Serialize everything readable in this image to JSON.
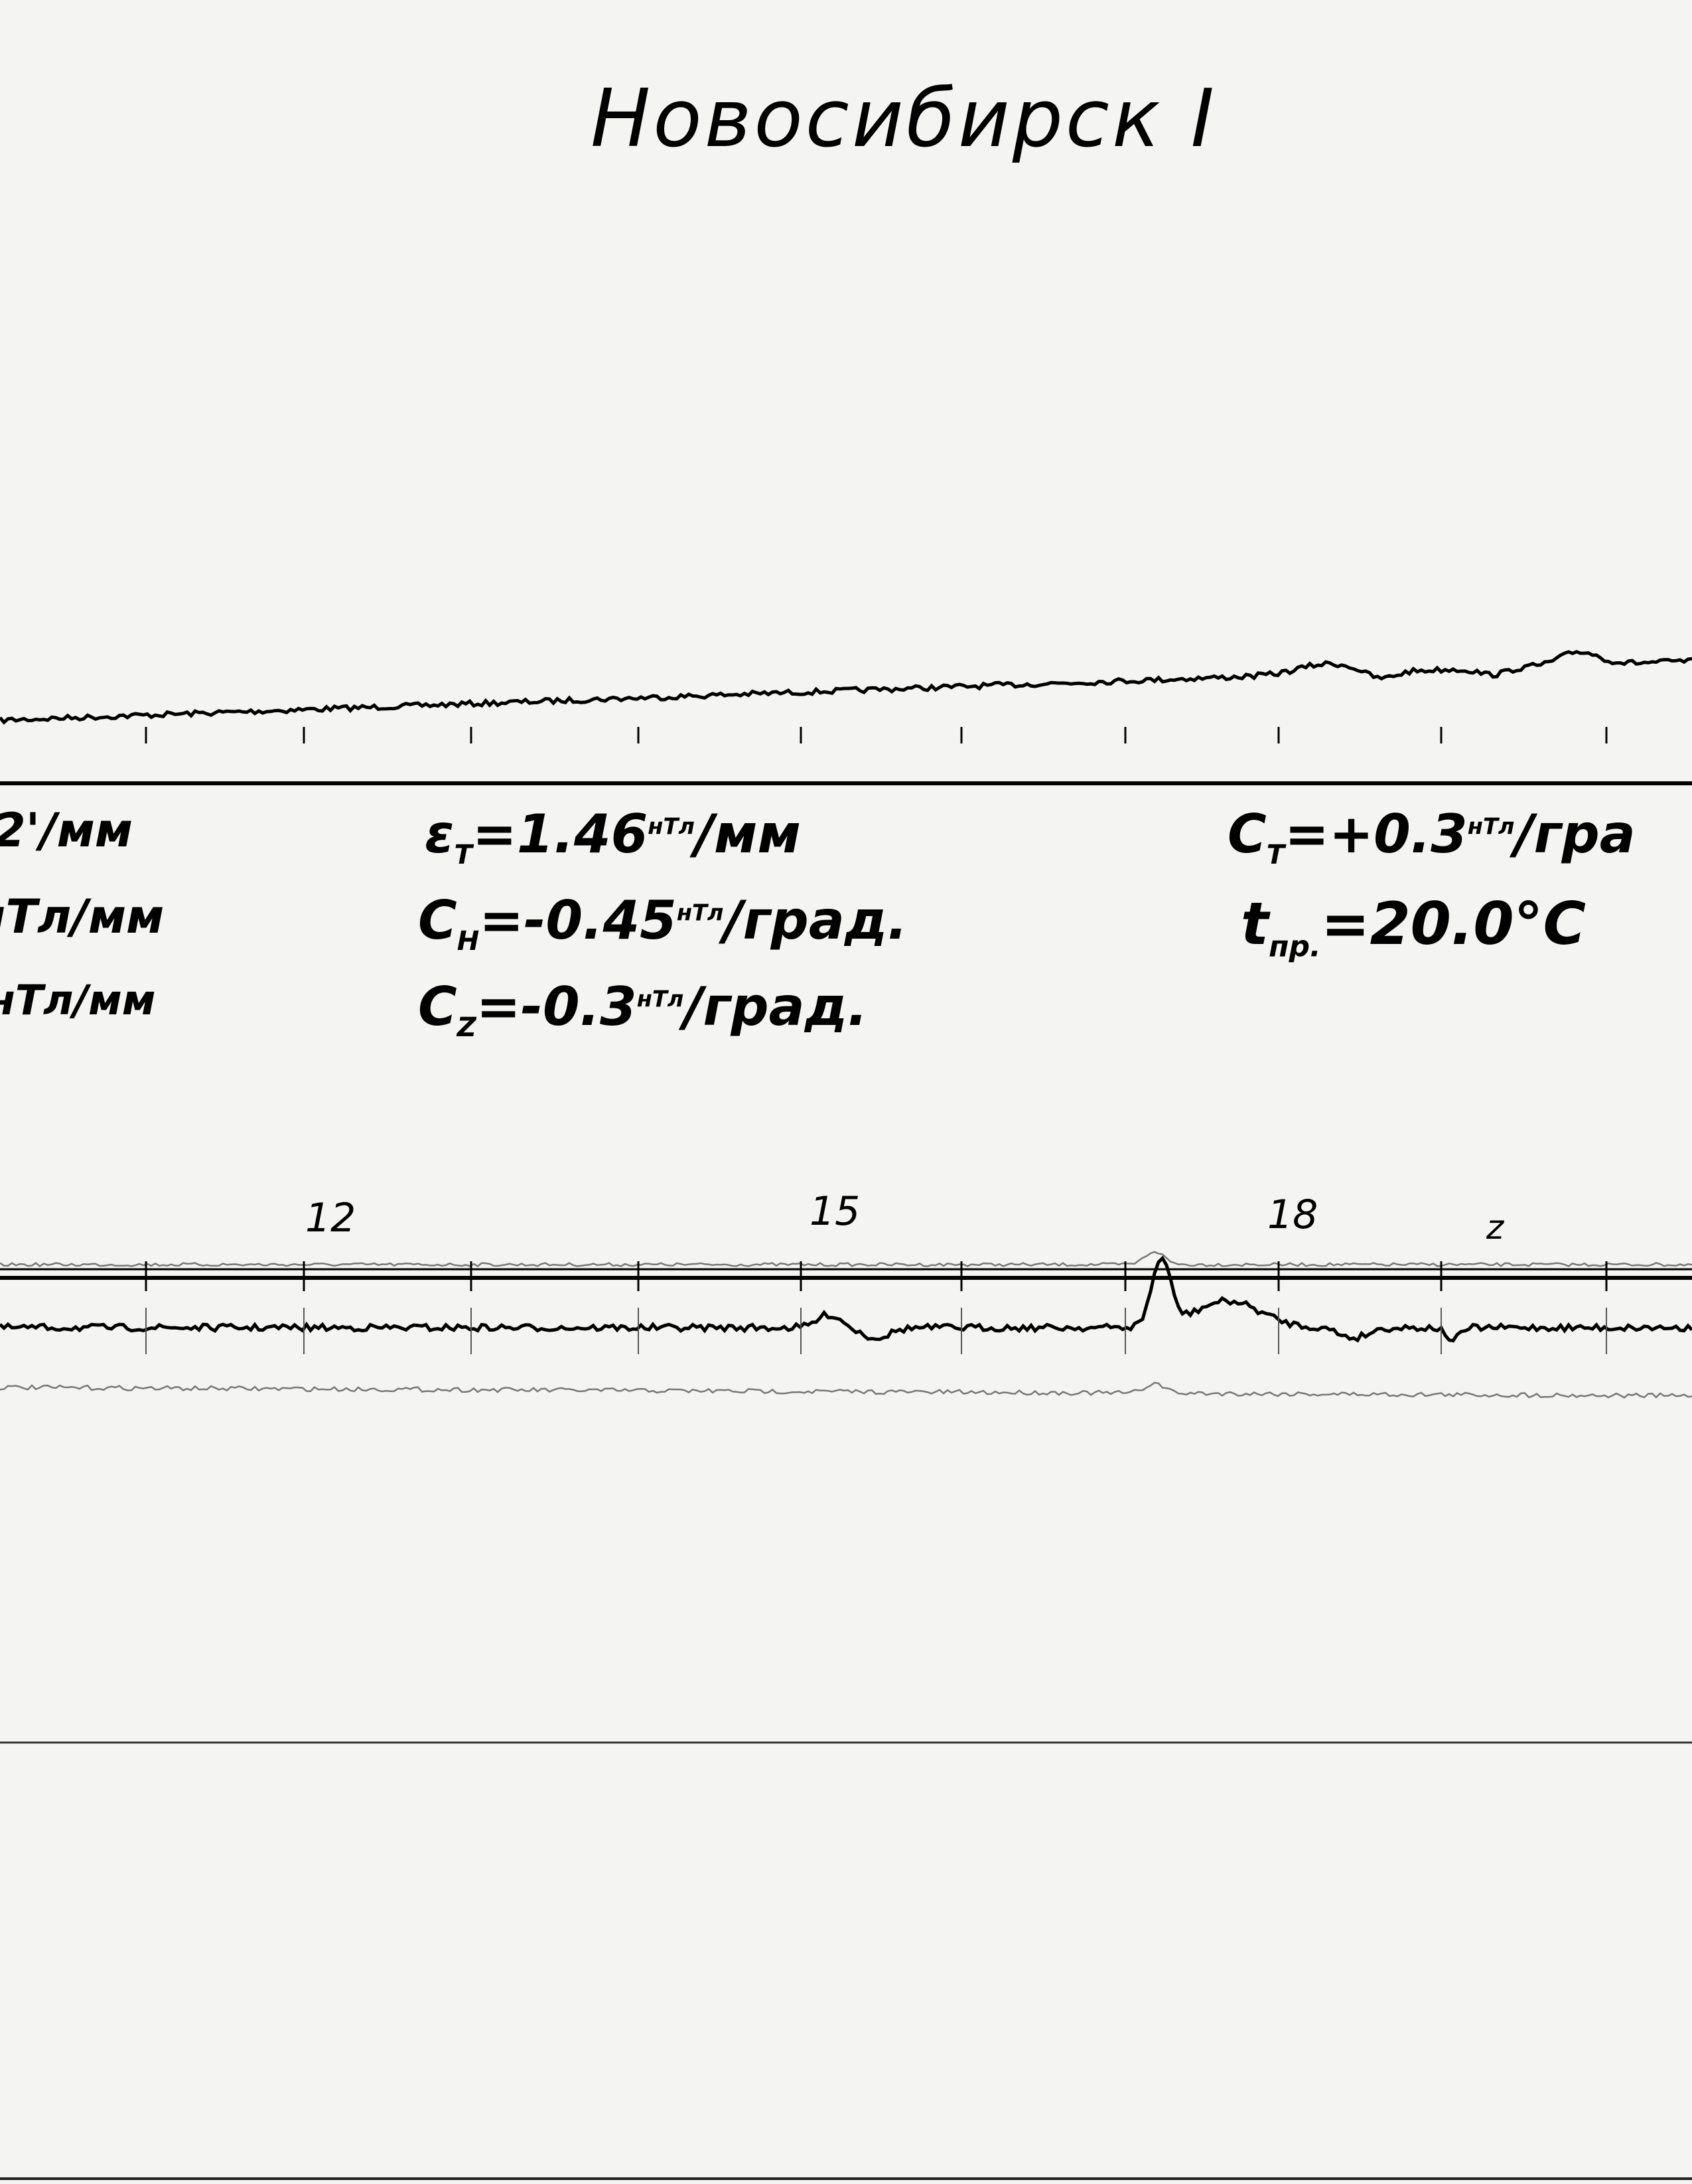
{
  "title": "Новосибирск I",
  "left_partial": {
    "line1": "2'/мм",
    "line2": "нТл/мм",
    "line3": "нТл/мм"
  },
  "coefficients": {
    "eps_t": {
      "symbol": "ε",
      "sub": "T",
      "value": "=1.46",
      "unit_sup": "нТл",
      "unit": "/мм"
    },
    "c_h": {
      "symbol": "C",
      "sub": "H",
      "value": "=-0.45",
      "unit_sup": "нТл",
      "unit": "/град."
    },
    "c_z": {
      "symbol": "C",
      "sub": "Z",
      "value": "=-0.3",
      "unit_sup": "нТл",
      "unit": "/град."
    },
    "c_t": {
      "symbol": "C",
      "sub": "T",
      "value": "=+0.3",
      "unit_sup": "нТл",
      "unit": "/гра"
    },
    "t_pr": {
      "symbol": "t",
      "sub": "пр.",
      "value": "=20.0°C"
    }
  },
  "hour_marks": [
    "12",
    "15",
    "18",
    "z"
  ],
  "colors": {
    "paper": "#f4f4f2",
    "ink": "#000000",
    "trace_light": "#777777"
  }
}
